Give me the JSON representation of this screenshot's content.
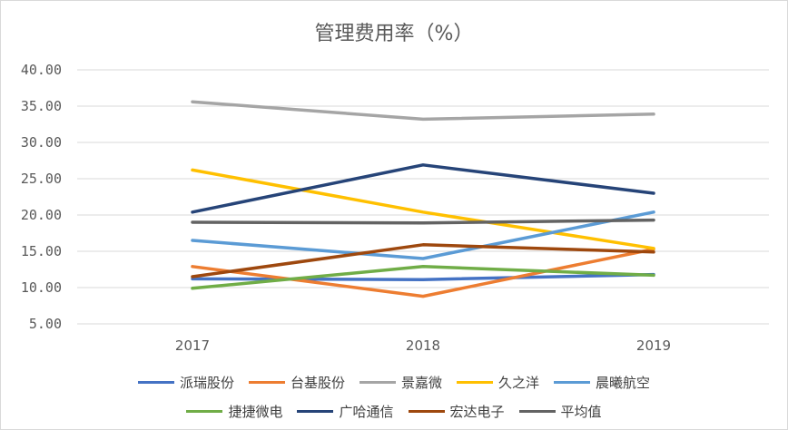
{
  "chart_data": {
    "type": "line",
    "title": "管理费用率（%）",
    "xlabel": "",
    "ylabel": "",
    "categories": [
      "2017",
      "2018",
      "2019"
    ],
    "ylim": [
      5,
      40
    ],
    "yticks": [
      "5.00",
      "10.00",
      "15.00",
      "20.00",
      "25.00",
      "30.00",
      "35.00",
      "40.00"
    ],
    "grid": true,
    "legend_position": "bottom",
    "series": [
      {
        "name": "派瑞股份",
        "color": "#4472c4",
        "values": [
          11.2,
          11.1,
          11.8
        ]
      },
      {
        "name": "台基股份",
        "color": "#ed7d31",
        "values": [
          12.9,
          8.8,
          15.3
        ]
      },
      {
        "name": "景嘉微",
        "color": "#a5a5a5",
        "values": [
          35.6,
          33.2,
          33.9
        ]
      },
      {
        "name": "久之洋",
        "color": "#ffc000",
        "values": [
          26.2,
          20.4,
          15.4
        ]
      },
      {
        "name": "晨曦航空",
        "color": "#5b9bd5",
        "values": [
          16.5,
          14.0,
          20.4
        ]
      },
      {
        "name": "捷捷微电",
        "color": "#70ad47",
        "values": [
          9.9,
          12.9,
          11.7
        ]
      },
      {
        "name": "广哈通信",
        "color": "#264478",
        "values": [
          20.4,
          26.9,
          23.0
        ]
      },
      {
        "name": "宏达电子",
        "color": "#9e480e",
        "values": [
          11.5,
          15.9,
          14.9
        ]
      },
      {
        "name": "平均值",
        "color": "#636363",
        "values": [
          19.0,
          18.9,
          19.3
        ]
      }
    ]
  }
}
